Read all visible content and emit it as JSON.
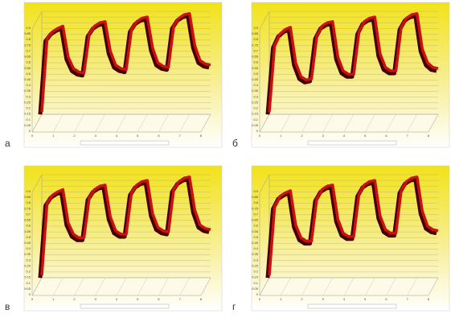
{
  "chart_data": [
    {
      "type": "line",
      "panel_label": "а",
      "ylim": [
        0,
        0.9
      ],
      "xlim": [
        0,
        8
      ],
      "yticks": [
        0,
        0.05,
        0.1,
        0.15,
        0.2,
        0.25,
        0.3,
        0.35,
        0.4,
        0.45,
        0.5,
        0.55,
        0.6,
        0.65,
        0.7,
        0.75,
        0.8,
        0.85,
        0.9
      ],
      "xticks": [
        0,
        1,
        2,
        3,
        4,
        5,
        6,
        7,
        8
      ],
      "x": [
        0,
        0.25,
        0.5,
        0.75,
        1,
        1.25,
        1.5,
        1.75,
        2,
        2.25,
        2.5,
        2.75,
        3,
        3.25,
        3.5,
        3.75,
        4,
        4.25,
        4.5,
        4.75,
        5,
        5.25,
        5.5,
        5.75,
        6,
        6.25,
        6.5,
        6.75,
        7,
        7.25,
        7.5,
        7.75,
        8
      ],
      "series": [
        {
          "color": "#cc1010",
          "values": [
            0.02,
            0.66,
            0.72,
            0.75,
            0.77,
            0.5,
            0.4,
            0.37,
            0.36,
            0.7,
            0.77,
            0.8,
            0.81,
            0.55,
            0.43,
            0.4,
            0.39,
            0.74,
            0.81,
            0.84,
            0.85,
            0.58,
            0.45,
            0.42,
            0.41,
            0.77,
            0.84,
            0.87,
            0.88,
            0.6,
            0.47,
            0.44,
            0.43
          ]
        }
      ]
    },
    {
      "type": "line",
      "panel_label": "б",
      "ylim": [
        0,
        0.9
      ],
      "xlim": [
        0,
        8
      ],
      "yticks": [
        0,
        0.05,
        0.1,
        0.15,
        0.2,
        0.25,
        0.3,
        0.35,
        0.4,
        0.45,
        0.5,
        0.55,
        0.6,
        0.65,
        0.7,
        0.75,
        0.8,
        0.85,
        0.9
      ],
      "xticks": [
        0,
        1,
        2,
        3,
        4,
        5,
        6,
        7,
        8
      ],
      "x": [
        0,
        0.25,
        0.5,
        0.75,
        1,
        1.25,
        1.5,
        1.75,
        2,
        2.25,
        2.5,
        2.75,
        3,
        3.25,
        3.5,
        3.75,
        4,
        4.25,
        4.5,
        4.75,
        5,
        5.25,
        5.5,
        5.75,
        6,
        6.25,
        6.5,
        6.75,
        7,
        7.25,
        7.5,
        7.75,
        8
      ],
      "series": [
        {
          "color": "#cc1010",
          "values": [
            0.02,
            0.6,
            0.7,
            0.74,
            0.76,
            0.45,
            0.33,
            0.3,
            0.31,
            0.68,
            0.77,
            0.8,
            0.81,
            0.5,
            0.38,
            0.35,
            0.35,
            0.72,
            0.81,
            0.84,
            0.85,
            0.53,
            0.41,
            0.38,
            0.38,
            0.76,
            0.84,
            0.87,
            0.88,
            0.57,
            0.45,
            0.41,
            0.4
          ]
        }
      ]
    },
    {
      "type": "line",
      "panel_label": "в",
      "ylim": [
        0,
        0.9
      ],
      "xlim": [
        0,
        8
      ],
      "yticks": [
        0,
        0.05,
        0.1,
        0.15,
        0.2,
        0.25,
        0.3,
        0.35,
        0.4,
        0.45,
        0.5,
        0.55,
        0.6,
        0.65,
        0.7,
        0.75,
        0.8,
        0.85,
        0.9
      ],
      "xticks": [
        0,
        1,
        2,
        3,
        4,
        5,
        6,
        7,
        8
      ],
      "x": [
        0,
        0.25,
        0.5,
        0.75,
        1,
        1.25,
        1.5,
        1.75,
        2,
        2.25,
        2.5,
        2.75,
        3,
        3.25,
        3.5,
        3.75,
        4,
        4.25,
        4.5,
        4.75,
        5,
        5.25,
        5.5,
        5.75,
        6,
        6.25,
        6.5,
        6.75,
        7,
        7.25,
        7.5,
        7.75,
        8
      ],
      "series": [
        {
          "color": "#cc1010",
          "values": [
            0.02,
            0.65,
            0.72,
            0.75,
            0.77,
            0.48,
            0.38,
            0.35,
            0.35,
            0.7,
            0.77,
            0.8,
            0.81,
            0.53,
            0.41,
            0.38,
            0.38,
            0.74,
            0.81,
            0.84,
            0.85,
            0.56,
            0.44,
            0.41,
            0.4,
            0.77,
            0.84,
            0.87,
            0.88,
            0.59,
            0.46,
            0.43,
            0.42
          ]
        }
      ]
    },
    {
      "type": "line",
      "panel_label": "г",
      "ylim": [
        0,
        0.9
      ],
      "xlim": [
        0,
        8
      ],
      "yticks": [
        0,
        0.05,
        0.1,
        0.15,
        0.2,
        0.25,
        0.3,
        0.35,
        0.4,
        0.45,
        0.5,
        0.55,
        0.6,
        0.65,
        0.7,
        0.75,
        0.8,
        0.85,
        0.9
      ],
      "xticks": [
        0,
        1,
        2,
        3,
        4,
        5,
        6,
        7,
        8
      ],
      "x": [
        0,
        0.25,
        0.5,
        0.75,
        1,
        1.25,
        1.5,
        1.75,
        2,
        2.25,
        2.5,
        2.75,
        3,
        3.25,
        3.5,
        3.75,
        4,
        4.25,
        4.5,
        4.75,
        5,
        5.25,
        5.5,
        5.75,
        6,
        6.25,
        6.5,
        6.75,
        7,
        7.25,
        7.5,
        7.75,
        8
      ],
      "series": [
        {
          "color": "#cc1010",
          "values": [
            0.02,
            0.62,
            0.71,
            0.74,
            0.76,
            0.46,
            0.35,
            0.32,
            0.32,
            0.69,
            0.77,
            0.8,
            0.81,
            0.51,
            0.39,
            0.36,
            0.36,
            0.73,
            0.81,
            0.84,
            0.85,
            0.54,
            0.42,
            0.39,
            0.39,
            0.76,
            0.84,
            0.87,
            0.88,
            0.58,
            0.45,
            0.42,
            0.41
          ]
        }
      ]
    }
  ]
}
